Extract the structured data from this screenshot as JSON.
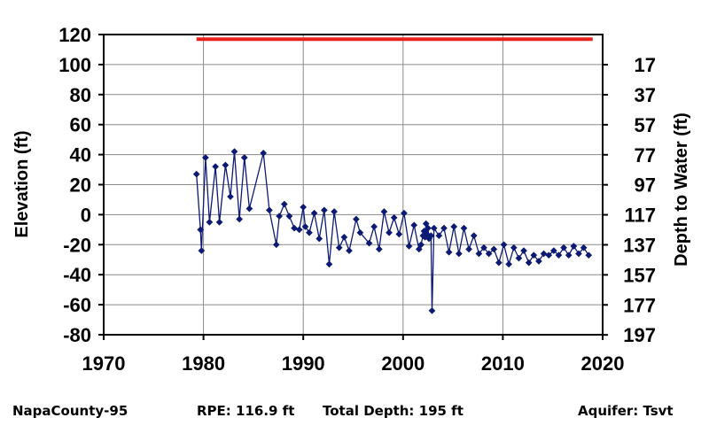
{
  "chart_data": {
    "type": "scatter",
    "xlim": [
      1970,
      2020
    ],
    "ylim": [
      -80,
      120
    ],
    "x_ticks": [
      1970,
      1980,
      1990,
      2000,
      2010,
      2020
    ],
    "y_ticks_left": [
      120,
      100,
      80,
      60,
      40,
      20,
      0,
      -20,
      -40,
      -60,
      -80
    ],
    "y_ticks_right": [
      17,
      37,
      57,
      77,
      97,
      117,
      137,
      157,
      177,
      197
    ],
    "ylabel_left": "Elevation (ft)",
    "ylabel_right": "Depth to Water (ft)",
    "grid": true,
    "colors": {
      "series": "#0d1a73",
      "reference": "#e8221a",
      "grid": "#8a8a8a"
    },
    "reference_line": {
      "y": 116.9,
      "x_start": 1979.3,
      "x_end": 2019.0
    },
    "series": [
      {
        "marker": "diamond",
        "points": [
          [
            1979.3,
            27
          ],
          [
            1979.7,
            -10
          ],
          [
            1979.8,
            -24
          ],
          [
            1980.2,
            38
          ],
          [
            1980.6,
            -5
          ],
          [
            1981.2,
            32
          ],
          [
            1981.6,
            -5
          ],
          [
            1982.2,
            33
          ],
          [
            1982.7,
            12
          ],
          [
            1983.1,
            42
          ],
          [
            1983.6,
            -3
          ],
          [
            1984.1,
            38
          ],
          [
            1984.6,
            4
          ],
          [
            1986.0,
            41
          ],
          [
            1986.6,
            3
          ],
          [
            1987.3,
            -20
          ],
          [
            1987.6,
            -1
          ],
          [
            1988.1,
            7
          ],
          [
            1988.6,
            -1
          ],
          [
            1989.1,
            -9
          ],
          [
            1989.6,
            -10
          ],
          [
            1990.0,
            5
          ],
          [
            1990.2,
            -8
          ],
          [
            1990.6,
            -12
          ],
          [
            1991.1,
            1
          ],
          [
            1991.6,
            -16
          ],
          [
            1992.1,
            3
          ],
          [
            1992.6,
            -33
          ],
          [
            1993.1,
            2
          ],
          [
            1993.6,
            -22
          ],
          [
            1994.1,
            -15
          ],
          [
            1994.6,
            -24
          ],
          [
            1995.3,
            -3
          ],
          [
            1995.7,
            -12
          ],
          [
            1996.6,
            -19
          ],
          [
            1997.1,
            -8
          ],
          [
            1997.6,
            -23
          ],
          [
            1998.1,
            2
          ],
          [
            1998.6,
            -12
          ],
          [
            1999.1,
            -2
          ],
          [
            1999.6,
            -13
          ],
          [
            2000.1,
            1
          ],
          [
            2000.6,
            -21
          ],
          [
            2001.1,
            -7
          ],
          [
            2001.6,
            -23
          ],
          [
            2001.8,
            -20
          ],
          [
            2002.0,
            -14
          ],
          [
            2002.1,
            -11
          ],
          [
            2002.2,
            -15
          ],
          [
            2002.3,
            -6
          ],
          [
            2002.4,
            -13
          ],
          [
            2002.5,
            -9
          ],
          [
            2002.6,
            -16
          ],
          [
            2002.8,
            -14
          ],
          [
            2002.9,
            -64
          ],
          [
            2003.1,
            -9
          ],
          [
            2003.6,
            -14
          ],
          [
            2004.1,
            -9
          ],
          [
            2004.6,
            -25
          ],
          [
            2005.1,
            -8
          ],
          [
            2005.6,
            -26
          ],
          [
            2006.1,
            -9
          ],
          [
            2006.6,
            -23
          ],
          [
            2007.1,
            -14
          ],
          [
            2007.6,
            -26
          ],
          [
            2008.1,
            -22
          ],
          [
            2008.6,
            -26
          ],
          [
            2009.1,
            -23
          ],
          [
            2009.6,
            -32
          ],
          [
            2010.1,
            -20
          ],
          [
            2010.6,
            -33
          ],
          [
            2011.1,
            -22
          ],
          [
            2011.6,
            -29
          ],
          [
            2012.1,
            -24
          ],
          [
            2012.6,
            -32
          ],
          [
            2013.1,
            -27
          ],
          [
            2013.6,
            -31
          ],
          [
            2014.1,
            -26
          ],
          [
            2014.6,
            -27
          ],
          [
            2015.1,
            -24
          ],
          [
            2015.6,
            -27
          ],
          [
            2016.1,
            -22
          ],
          [
            2016.6,
            -27
          ],
          [
            2017.1,
            -21
          ],
          [
            2017.6,
            -26
          ],
          [
            2018.1,
            -22
          ],
          [
            2018.6,
            -27
          ]
        ]
      }
    ]
  },
  "footer": {
    "well": "NapaCounty-95",
    "rpe": "RPE: 116.9 ft",
    "total_depth": "Total Depth: 195 ft",
    "aquifer": "Aquifer: Tsvt"
  }
}
